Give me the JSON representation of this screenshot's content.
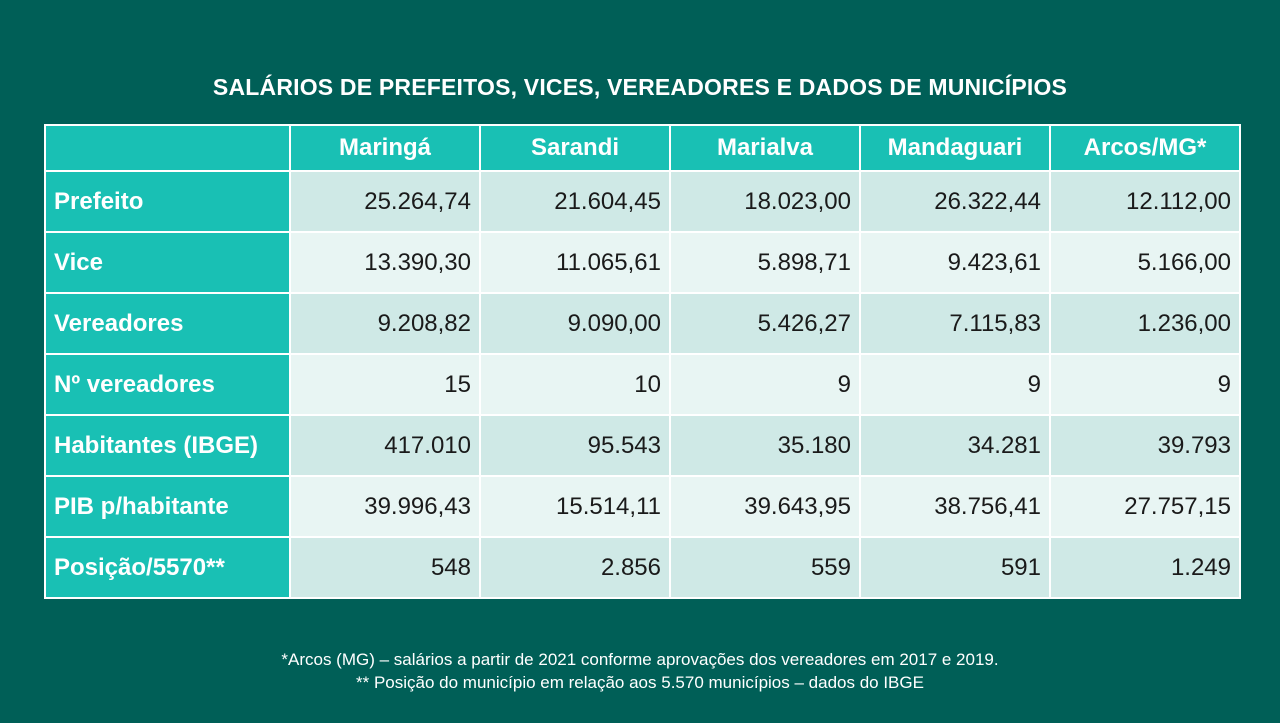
{
  "title": "SALÁRIOS DE PREFEITOS, VICES, VEREADORES E DADOS DE MUNICÍPIOS",
  "chart_data": {
    "type": "table",
    "columns": [
      "",
      "Maringá",
      "Sarandi",
      "Marialva",
      "Mandaguari",
      "Arcos/MG*"
    ],
    "rows": [
      {
        "label": "Prefeito",
        "values": [
          "25.264,74",
          "21.604,45",
          "18.023,00",
          "26.322,44",
          "12.112,00"
        ]
      },
      {
        "label": "Vice",
        "values": [
          "13.390,30",
          "11.065,61",
          "5.898,71",
          "9.423,61",
          "5.166,00"
        ]
      },
      {
        "label": "Vereadores",
        "values": [
          "9.208,82",
          "9.090,00",
          "5.426,27",
          "7.115,83",
          "1.236,00"
        ]
      },
      {
        "label": "Nº vereadores",
        "values": [
          "15",
          "10",
          "9",
          "9",
          "9"
        ]
      },
      {
        "label": "Habitantes (IBGE)",
        "values": [
          "417.010",
          "95.543",
          "35.180",
          "34.281",
          "39.793"
        ]
      },
      {
        "label": "PIB p/habitante",
        "values": [
          "39.996,43",
          "15.514,11",
          "39.643,95",
          "38.756,41",
          "27.757,15"
        ]
      },
      {
        "label": "Posição/5570**",
        "values": [
          "548",
          "2.856",
          "559",
          "591",
          "1.249"
        ]
      }
    ]
  },
  "notes": [
    "*Arcos (MG) – salários a partir de 2021 conforme aprovações dos vereadores em 2017 e 2019.",
    "** Posição do município em relação aos 5.570 municípios – dados do IBGE"
  ],
  "colors": {
    "background": "#005f57",
    "header": "#19c0b4",
    "row_dark": "#cfe9e6",
    "row_light": "#e8f5f3"
  }
}
